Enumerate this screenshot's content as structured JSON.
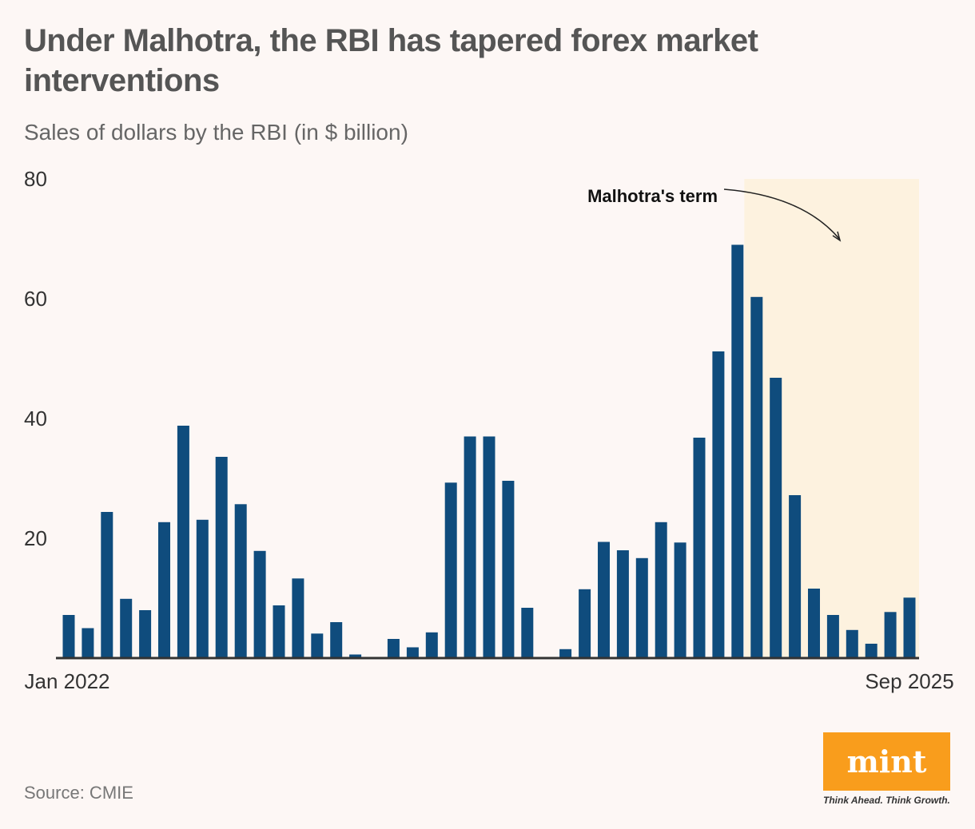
{
  "title": "Under Malhotra, the RBI has tapered forex market interventions",
  "subtitle": "Sales of dollars by the RBI (in $ billion)",
  "source": "Source: CMIE",
  "logo": {
    "name": "mint",
    "tagline": "Think Ahead. Think Growth."
  },
  "chart_data": {
    "type": "bar",
    "title": "Under Malhotra, the RBI has tapered forex market interventions",
    "subtitle": "Sales of dollars by the RBI (in $ billion)",
    "x_start_label": "Jan 2022",
    "x_end_label": "Sep 2025",
    "categories": [
      "Jan 2022",
      "Feb 2022",
      "Mar 2022",
      "Apr 2022",
      "May 2022",
      "Jun 2022",
      "Jul 2022",
      "Aug 2022",
      "Sep 2022",
      "Oct 2022",
      "Nov 2022",
      "Dec 2022",
      "Jan 2023",
      "Feb 2023",
      "Mar 2023",
      "Apr 2023",
      "May 2023",
      "Jun 2023",
      "Jul 2023",
      "Aug 2023",
      "Sep 2023",
      "Oct 2023",
      "Nov 2023",
      "Dec 2023",
      "Jan 2024",
      "Feb 2024",
      "Mar 2024",
      "Apr 2024",
      "May 2024",
      "Jun 2024",
      "Jul 2024",
      "Aug 2024",
      "Sep 2024",
      "Oct 2024",
      "Nov 2024",
      "Dec 2024",
      "Jan 2025",
      "Feb 2025",
      "Mar 2025",
      "Apr 2025",
      "May 2025",
      "Jun 2025",
      "Jul 2025",
      "Aug 2025",
      "Sep 2025"
    ],
    "values": [
      7.2,
      5.0,
      24.4,
      9.9,
      8.0,
      22.7,
      38.8,
      23.1,
      33.6,
      25.7,
      17.9,
      8.8,
      13.3,
      4.1,
      6.0,
      0.6,
      0,
      3.2,
      1.8,
      4.3,
      29.3,
      37.0,
      37.0,
      29.6,
      8.4,
      0,
      1.5,
      11.5,
      19.4,
      18.0,
      16.7,
      22.7,
      19.3,
      36.8,
      51.2,
      69.0,
      60.3,
      46.8,
      27.2,
      11.6,
      7.2,
      4.7,
      2.4,
      7.7,
      10.1
    ],
    "ylim": [
      0,
      80
    ],
    "yticks": [
      20,
      40,
      60,
      80
    ],
    "grid": false,
    "bar_color": "#0f4c7d",
    "highlight": {
      "label": "Malhotra's term",
      "start": "Dec 2024",
      "end": "Sep 2025",
      "color": "#fdf2df"
    }
  }
}
